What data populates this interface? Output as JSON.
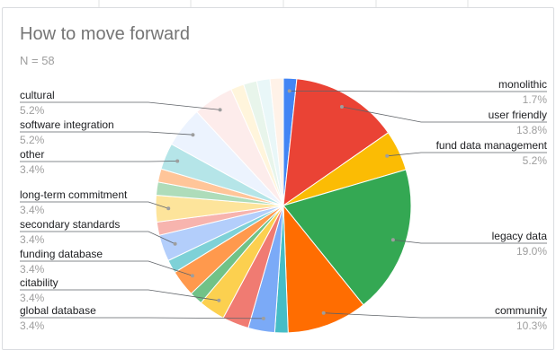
{
  "title": "How to move forward",
  "subtitle": "N = 58",
  "chart_data": {
    "type": "pie",
    "title": "How to move forward",
    "subtitle": "N = 58",
    "start": "12 o'clock, clockwise",
    "slices": [
      {
        "label": "monolithic",
        "pct_label": "1.7%",
        "value": 1.7,
        "color": "#4285f4"
      },
      {
        "label": "user friendly",
        "pct_label": "13.8%",
        "value": 13.8,
        "color": "#ea4335"
      },
      {
        "label": "fund data management",
        "pct_label": "5.2%",
        "value": 5.2,
        "color": "#fbbc04"
      },
      {
        "label": "legacy data",
        "pct_label": "19.0%",
        "value": 19.0,
        "color": "#34a853"
      },
      {
        "label": "community",
        "pct_label": "10.3%",
        "value": 10.3,
        "color": "#ff6d01"
      },
      {
        "label": "",
        "pct_label": "",
        "value": 1.7,
        "color": "#46bdc6"
      },
      {
        "label": "global database",
        "pct_label": "3.4%",
        "value": 3.4,
        "color": "#7baaf7"
      },
      {
        "label": "",
        "pct_label": "",
        "value": 3.4,
        "color": "#f07b72"
      },
      {
        "label": "citability",
        "pct_label": "3.4%",
        "value": 3.4,
        "color": "#fcd04f"
      },
      {
        "label": "",
        "pct_label": "",
        "value": 1.7,
        "color": "#71c287"
      },
      {
        "label": "funding database",
        "pct_label": "3.4%",
        "value": 3.4,
        "color": "#ff994d"
      },
      {
        "label": "",
        "pct_label": "",
        "value": 1.7,
        "color": "#7ed1d7"
      },
      {
        "label": "secondary standards",
        "pct_label": "3.4%",
        "value": 3.4,
        "color": "#b3cefb"
      },
      {
        "label": "",
        "pct_label": "",
        "value": 1.7,
        "color": "#f7b4ae"
      },
      {
        "label": "long-term commitment",
        "pct_label": "3.4%",
        "value": 3.4,
        "color": "#fde49b"
      },
      {
        "label": "",
        "pct_label": "",
        "value": 1.7,
        "color": "#aedcba"
      },
      {
        "label": "",
        "pct_label": "",
        "value": 1.7,
        "color": "#ffc599"
      },
      {
        "label": "other",
        "pct_label": "3.4%",
        "value": 3.4,
        "color": "#b5e5e8"
      },
      {
        "label": "software integration",
        "pct_label": "5.2%",
        "value": 5.2,
        "color": "#ecf3fe"
      },
      {
        "label": "cultural",
        "pct_label": "5.2%",
        "value": 5.2,
        "color": "#fdeceb"
      },
      {
        "label": "",
        "pct_label": "",
        "value": 1.7,
        "color": "#fff5dc"
      },
      {
        "label": "",
        "pct_label": "",
        "value": 1.7,
        "color": "#e8f5eb"
      },
      {
        "label": "",
        "pct_label": "",
        "value": 1.7,
        "color": "#e9f7f8"
      },
      {
        "label": "",
        "pct_label": "",
        "value": 1.7,
        "color": "#fff2e8"
      }
    ],
    "legend": "none; callout labels on left and right sides"
  }
}
